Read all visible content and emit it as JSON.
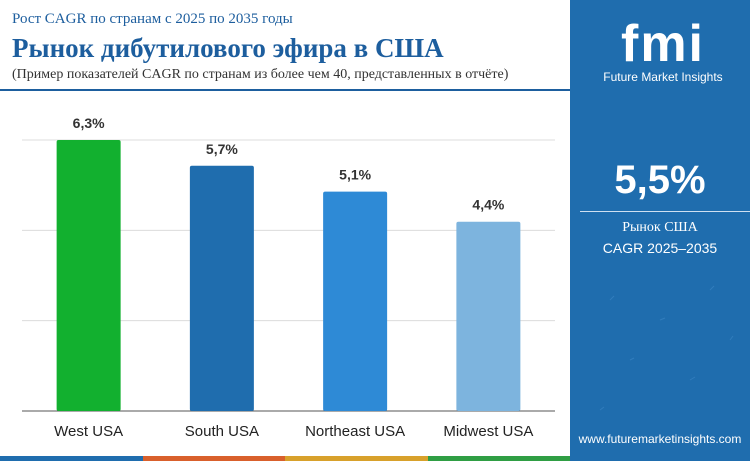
{
  "header": {
    "kicker": "Рост CAGR по странам с 2025 по 2035 годы",
    "title": "Рынок дибутилового эфира в США",
    "subtitle": "(Пример показателей CAGR по странам из более чем 40, представленных в отчёте)"
  },
  "sidebar": {
    "logo_text": "fmi",
    "logo_subtitle": "Future Market Insights",
    "stat_value": "5,5%",
    "stat_label_line1": "Рынок США",
    "stat_label_line2": "CAGR 2025–2035",
    "website": "www.futuremarketinsights.com"
  },
  "colors": {
    "brand_blue": "#1d5e9e",
    "sidebar_bg": "#1f6dae",
    "bottom_bar": [
      "#1f6dae",
      "#d9602c",
      "#d8a12b",
      "#2f9e44"
    ]
  },
  "chart_data": {
    "type": "bar",
    "categories": [
      "West USA",
      "South USA",
      "Northeast USA",
      "Midwest USA"
    ],
    "values": [
      6.3,
      5.7,
      5.1,
      4.4
    ],
    "value_labels": [
      "6,3%",
      "5,7%",
      "5,1%",
      "4,4%"
    ],
    "bar_colors": [
      "#12b02f",
      "#1f6dae",
      "#2e8ad6",
      "#7db4de"
    ],
    "ylim": [
      0,
      6.3
    ],
    "grid": true
  }
}
